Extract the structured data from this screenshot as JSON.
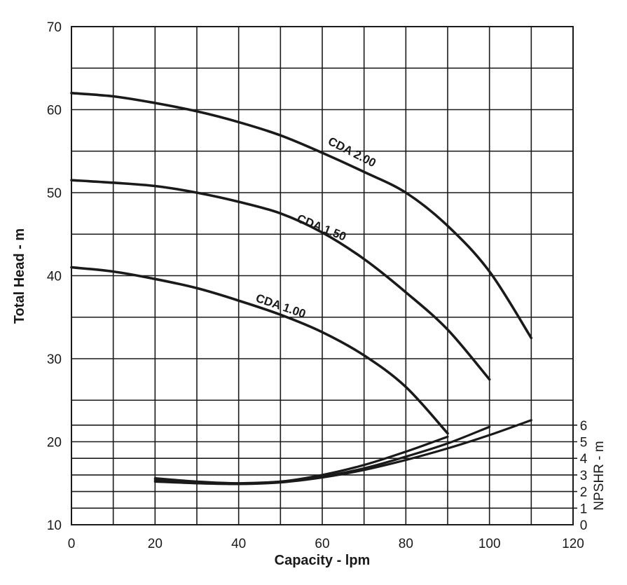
{
  "chart_data": {
    "type": "line",
    "xlabel": "Capacity - lpm",
    "ylabel": "Total Head - m",
    "y2label": "NPSHR - m",
    "xlim": [
      0,
      120
    ],
    "ylim": [
      10,
      70
    ],
    "x_ticks": [
      0,
      20,
      40,
      60,
      80,
      100,
      120
    ],
    "y_ticks": [
      10,
      20,
      30,
      40,
      50,
      60,
      70
    ],
    "y2_ticks": [
      0,
      1,
      2,
      3,
      4,
      5,
      6
    ],
    "grid": true,
    "series": [
      {
        "name": "CDA 2.00",
        "x": [
          0,
          10,
          20,
          30,
          40,
          50,
          60,
          70,
          80,
          90,
          100,
          110
        ],
        "y": [
          62,
          61.6,
          60.8,
          59.8,
          58.5,
          56.9,
          54.8,
          52.5,
          50,
          46,
          40.5,
          32.5
        ]
      },
      {
        "name": "CDA 1.50",
        "x": [
          0,
          10,
          20,
          30,
          40,
          50,
          60,
          70,
          80,
          90,
          100
        ],
        "y": [
          51.5,
          51.2,
          50.8,
          50,
          48.9,
          47.5,
          45.2,
          42,
          38,
          33.5,
          27.5
        ]
      },
      {
        "name": "CDA 1.00",
        "x": [
          0,
          10,
          20,
          30,
          40,
          50,
          60,
          70,
          80,
          90
        ],
        "y": [
          41,
          40.5,
          39.6,
          38.5,
          37,
          35.3,
          33.2,
          30.4,
          26.6,
          21
        ]
      }
    ],
    "npshr_series": [
      {
        "label": "CDA 1.00",
        "x": [
          20,
          30,
          40,
          50,
          60,
          70,
          80,
          90
        ],
        "y": [
          2.8,
          2.6,
          2.5,
          2.6,
          3,
          3.6,
          4.4,
          5.3
        ]
      },
      {
        "label": "CDA 1.50",
        "x": [
          20,
          30,
          40,
          50,
          60,
          70,
          80,
          90,
          100
        ],
        "y": [
          2.7,
          2.5,
          2.5,
          2.6,
          2.9,
          3.4,
          4.1,
          4.9,
          5.9
        ]
      },
      {
        "label": "CDA 2.00",
        "x": [
          20,
          30,
          40,
          50,
          60,
          70,
          80,
          90,
          100,
          110
        ],
        "y": [
          2.6,
          2.5,
          2.45,
          2.55,
          2.85,
          3.3,
          3.9,
          4.6,
          5.4,
          6.3
        ]
      }
    ]
  }
}
